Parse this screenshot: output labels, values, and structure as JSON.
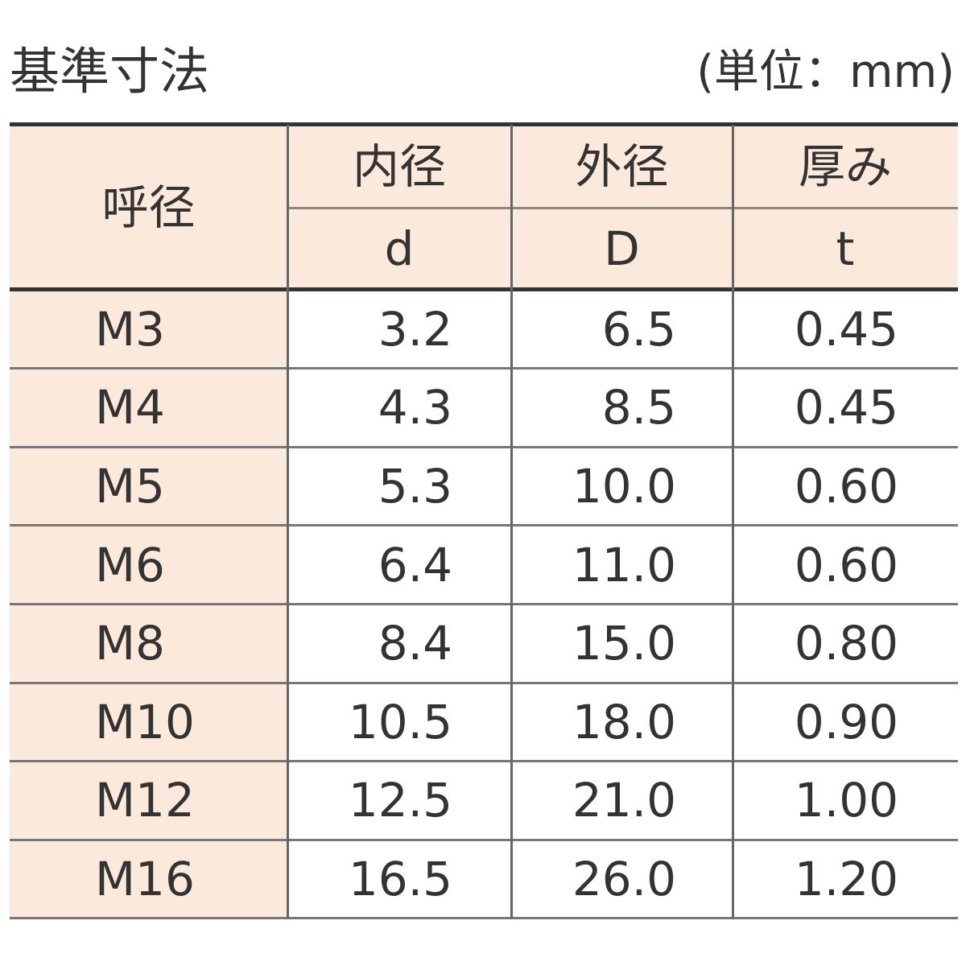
{
  "header": {
    "title": "基準寸法",
    "unit": "(単位：mm)"
  },
  "table": {
    "corner": "呼径",
    "columns": [
      {
        "label": "内径",
        "symbol": "d"
      },
      {
        "label": "外径",
        "symbol": "D"
      },
      {
        "label": "厚み",
        "symbol": "t"
      }
    ],
    "rows": [
      [
        "M3",
        "3.2",
        "6.5",
        "0.45"
      ],
      [
        "M4",
        "4.3",
        "8.5",
        "0.45"
      ],
      [
        "M5",
        "5.3",
        "10.0",
        "0.60"
      ],
      [
        "M6",
        "6.4",
        "11.0",
        "0.60"
      ],
      [
        "M8",
        "8.4",
        "15.0",
        "0.80"
      ],
      [
        "M10",
        "10.5",
        "18.0",
        "0.90"
      ],
      [
        "M12",
        "12.5",
        "21.0",
        "1.00"
      ],
      [
        "M16",
        "16.5",
        "26.0",
        "1.20"
      ]
    ]
  }
}
